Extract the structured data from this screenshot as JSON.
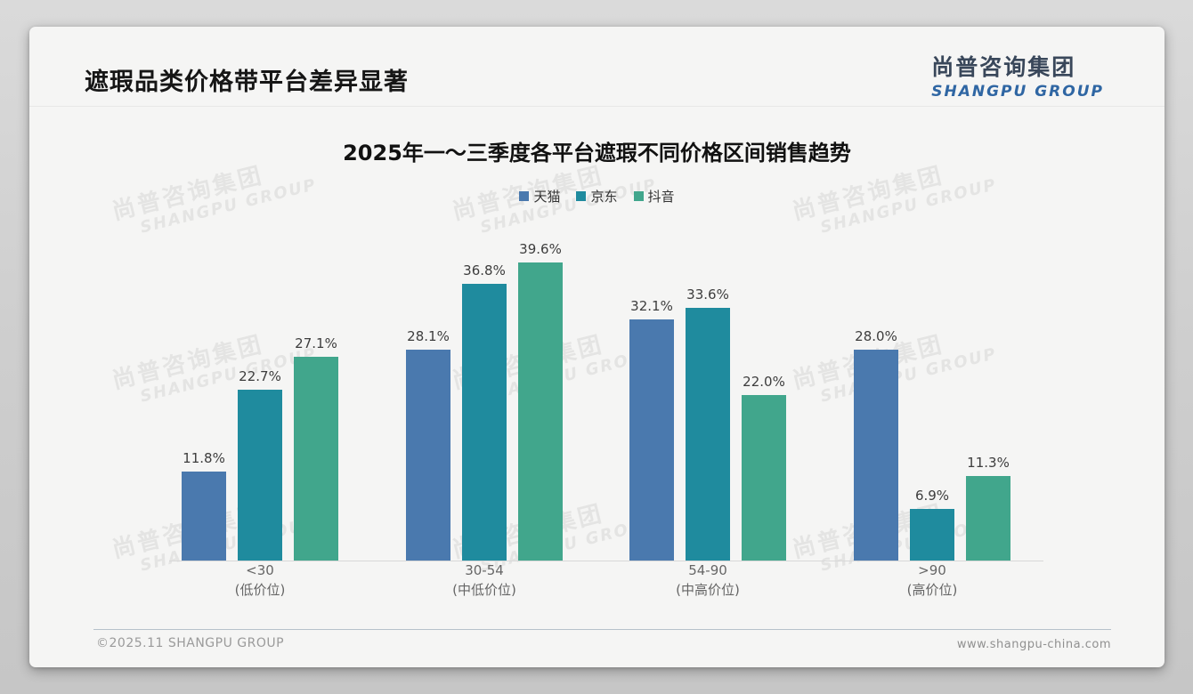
{
  "header": {
    "title": "遮瑕品类价格带平台差异显著",
    "logo": {
      "chinese": "尚普咨询集团",
      "english": "SHANGPU GROUP"
    }
  },
  "watermark": {
    "line1": "尚普咨询集团",
    "line2": "SHANGPU GROUP"
  },
  "chart_data": {
    "type": "bar",
    "title": "2025年一～三季度各平台遮瑕不同价格区间销售趋势",
    "categories": [
      "<30",
      "30-54",
      "54-90",
      ">90"
    ],
    "category_sublabels": [
      "(低价位)",
      "(中低价位)",
      "(中高价位)",
      "(高价位)"
    ],
    "series": [
      {
        "name": "天猫",
        "color": "#4a79ae",
        "values": [
          11.8,
          28.1,
          32.1,
          28.0
        ]
      },
      {
        "name": "京东",
        "color": "#1f8b9e",
        "values": [
          22.7,
          36.8,
          33.6,
          6.9
        ]
      },
      {
        "name": "抖音",
        "color": "#41a68c",
        "values": [
          27.1,
          39.6,
          22.0,
          11.3
        ]
      }
    ],
    "value_suffix": "%",
    "ylim": [
      0,
      42
    ],
    "grid": false,
    "legend_position": "top",
    "xlabel": "",
    "ylabel": ""
  },
  "footer": {
    "left": "©2025.11 SHANGPU GROUP",
    "right": "www.shangpu-china.com"
  }
}
